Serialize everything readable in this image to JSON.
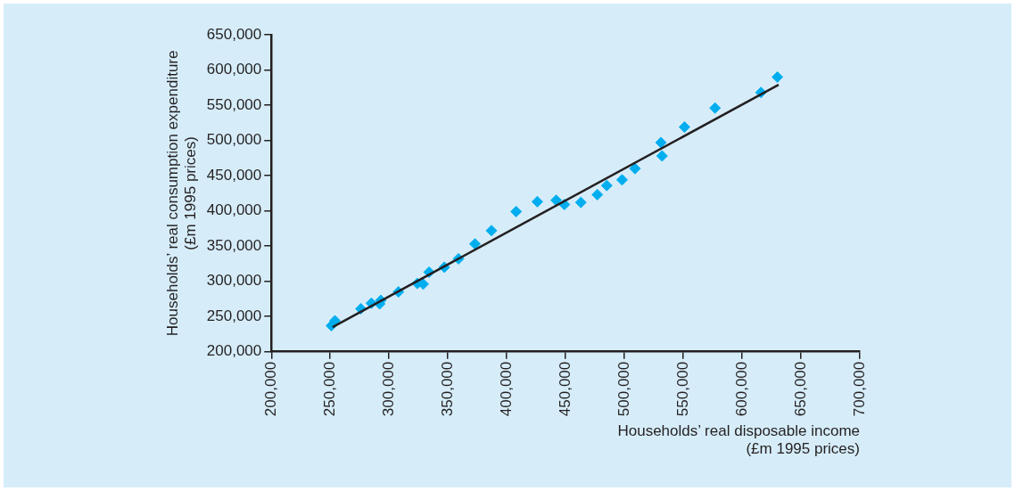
{
  "chart_data": {
    "type": "scatter",
    "xlabel": "Households’ real disposable income\n(£m 1995 prices)",
    "ylabel": "Households’ real consumption expenditure\n(£m 1995 prices)",
    "xlim": [
      200000,
      700000
    ],
    "xticks": [
      {
        "value": 200000,
        "label": "200,000"
      },
      {
        "value": 250000,
        "label": "250,000"
      },
      {
        "value": 300000,
        "label": "300,000"
      },
      {
        "value": 350000,
        "label": "350,000"
      },
      {
        "value": 400000,
        "label": "400,000"
      },
      {
        "value": 450000,
        "label": "450,000"
      },
      {
        "value": 500000,
        "label": "500,000"
      },
      {
        "value": 550000,
        "label": "550,000"
      },
      {
        "value": 600000,
        "label": "600,000"
      },
      {
        "value": 650000,
        "label": "650,000"
      },
      {
        "value": 700000,
        "label": "700,000"
      }
    ],
    "ylim": [
      200000,
      650000
    ],
    "yticks": [
      {
        "value": 200000,
        "label": "200,000"
      },
      {
        "value": 250000,
        "label": "250,000"
      },
      {
        "value": 300000,
        "label": "300,000"
      },
      {
        "value": 350000,
        "label": "350,000"
      },
      {
        "value": 400000,
        "label": "400,000"
      },
      {
        "value": 450000,
        "label": "450,000"
      },
      {
        "value": 500000,
        "label": "500,000"
      },
      {
        "value": 550000,
        "label": "550,000"
      },
      {
        "value": 600000,
        "label": "600,000"
      },
      {
        "value": 650000,
        "label": "650,000"
      }
    ],
    "grid": false,
    "legend": false,
    "marker": "diamond",
    "series": [
      {
        "color": "#00aeef",
        "x": [
          251000,
          254000,
          276000,
          285000,
          292000,
          293000,
          308000,
          324000,
          329000,
          334000,
          347000,
          359000,
          373000,
          387000,
          408000,
          426000,
          442000,
          449000,
          463000,
          477000,
          485000,
          498000,
          509000,
          531000,
          532000,
          551000,
          577000,
          616000,
          630000
        ],
        "values": [
          237000,
          244000,
          261000,
          269000,
          268000,
          273000,
          285000,
          297000,
          296000,
          313000,
          320000,
          332000,
          353000,
          372000,
          399000,
          413000,
          415000,
          409000,
          412000,
          423000,
          436000,
          444000,
          460000,
          497000,
          478000,
          519000,
          546000,
          568000,
          590000
        ]
      },
      {
        "type": "line",
        "color": "#231f20",
        "marker": "none",
        "line_style": "solid",
        "x": [
          252000,
          631000
        ],
        "values": [
          235000,
          579000
        ]
      }
    ]
  }
}
